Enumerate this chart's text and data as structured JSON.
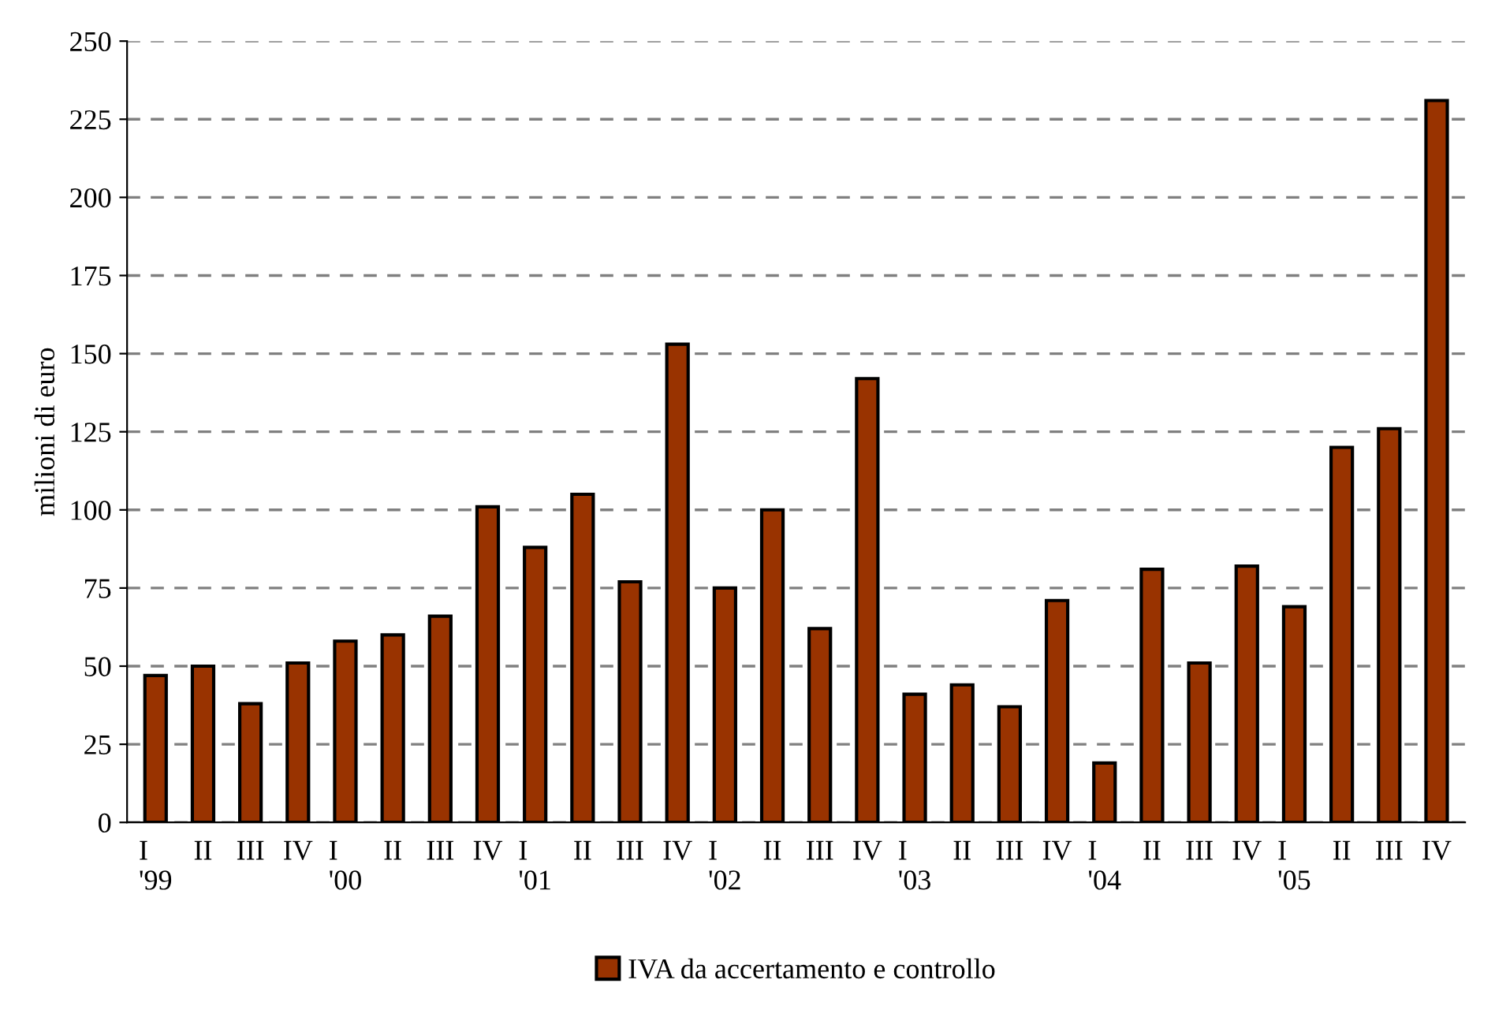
{
  "chart_data": {
    "type": "bar",
    "ylabel": "milioni di euro",
    "categories": [
      "I\n'99",
      "II",
      "III",
      "IV",
      "I\n'00",
      "II",
      "III",
      "IV",
      "I\n'01",
      "II",
      "III",
      "IV",
      "I\n'02",
      "II",
      "III",
      "IV",
      "I\n'03",
      "II",
      "III",
      "IV",
      "I\n'04",
      "II",
      "III",
      "IV",
      "I\n'05",
      "II",
      "III",
      "IV"
    ],
    "series": [
      {
        "name": "IVA da accertamento e controllo",
        "color": "#993300",
        "values": [
          47,
          50,
          38,
          51,
          58,
          60,
          66,
          101,
          88,
          105,
          77,
          153,
          75,
          100,
          62,
          142,
          41,
          44,
          37,
          71,
          19,
          81,
          51,
          82,
          69,
          120,
          126,
          231
        ]
      }
    ],
    "ylim": [
      0,
      250
    ],
    "yticks": [
      0,
      25,
      50,
      75,
      100,
      125,
      150,
      175,
      200,
      225,
      250
    ],
    "grid": "y",
    "legend": "bottom"
  }
}
